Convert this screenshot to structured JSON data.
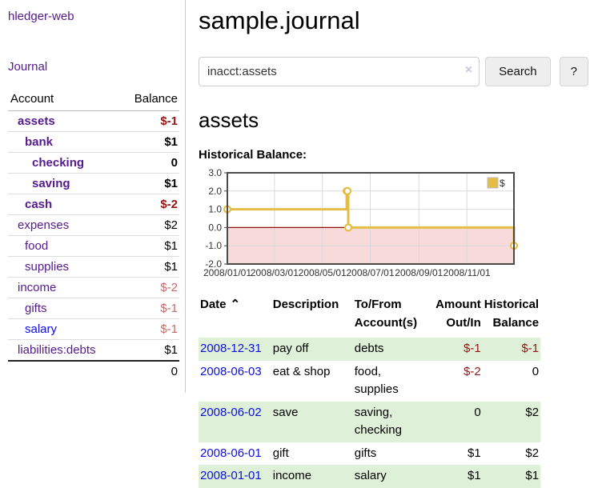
{
  "colors": {
    "link_visited": "#551a8b",
    "link_unvisited": "#0e0ee0",
    "negative_strong": "#941717",
    "negative_soft": "#c46a6a",
    "row_stripe": "#dff0d8"
  },
  "sidebar": {
    "brand": "hledger-web",
    "journal_link": "Journal",
    "accounts_table": {
      "headers": [
        "Account",
        "Balance"
      ],
      "rows": [
        {
          "account": "assets",
          "depth": 0,
          "bold": true,
          "balance": "$-1"
        },
        {
          "account": "bank",
          "depth": 1,
          "bold": true,
          "balance": "$1"
        },
        {
          "account": "checking",
          "depth": 2,
          "bold": true,
          "balance": "0"
        },
        {
          "account": "saving",
          "depth": 2,
          "bold": true,
          "balance": "$1"
        },
        {
          "account": "cash",
          "depth": 1,
          "bold": true,
          "balance": "$-2"
        },
        {
          "account": "expenses",
          "depth": 0,
          "bold": false,
          "balance": "$2"
        },
        {
          "account": "food",
          "depth": 1,
          "bold": false,
          "balance": "$1"
        },
        {
          "account": "supplies",
          "depth": 1,
          "bold": false,
          "balance": "$1"
        },
        {
          "account": "income",
          "depth": 0,
          "bold": false,
          "balance": "$-2"
        },
        {
          "account": "gifts",
          "depth": 1,
          "bold": false,
          "balance": "$-1"
        },
        {
          "account": "salary",
          "depth": 1,
          "bold": false,
          "balance": "$-1",
          "unvisited": true
        },
        {
          "account": "liabilities:debts",
          "depth": 0,
          "bold": false,
          "balance": "$1"
        }
      ],
      "total": "0"
    }
  },
  "main": {
    "title": "sample.journal",
    "search": {
      "value": "inacct:assets",
      "clear_icon": "×",
      "button_label": "Search",
      "help_label": "?"
    },
    "account_heading": "assets",
    "chart_label": "Historical Balance:",
    "register_table": {
      "headers": [
        {
          "label": "Date",
          "sort_indicator": "⌃"
        },
        {
          "label": "Description"
        },
        {
          "label": "To/From Account(s)"
        },
        {
          "label": "Amount Out/In",
          "align": "right"
        },
        {
          "label": "Historical Balance",
          "align": "right"
        }
      ],
      "rows": [
        {
          "date": "2008-12-31",
          "description": "pay off",
          "accounts": "debts",
          "amount": "$-1",
          "balance": "$-1"
        },
        {
          "date": "2008-06-03",
          "description": "eat & shop",
          "accounts": "food, supplies",
          "amount": "$-2",
          "balance": "0"
        },
        {
          "date": "2008-06-02",
          "description": "save",
          "accounts": "saving, checking",
          "amount": "0",
          "balance": "$2"
        },
        {
          "date": "2008-06-01",
          "description": "gift",
          "accounts": "gifts",
          "amount": "$1",
          "balance": "$2"
        },
        {
          "date": "2008-01-01",
          "description": "income",
          "accounts": "salary",
          "amount": "$1",
          "balance": "$1"
        }
      ]
    }
  },
  "chart_data": {
    "type": "line",
    "title": "Historical Balance",
    "step": true,
    "series": [
      {
        "name": "$",
        "points": [
          [
            "2008-01-01",
            1
          ],
          [
            "2008-06-01",
            2
          ],
          [
            "2008-06-02",
            2
          ],
          [
            "2008-06-03",
            0
          ],
          [
            "2008-12-31",
            -1
          ]
        ]
      }
    ],
    "xlim": [
      "2008-01-01",
      "2008-12-31"
    ],
    "ylim": [
      -2,
      3
    ],
    "y_ticks": [
      3.0,
      2.0,
      1.0,
      0.0,
      -1.0,
      -2.0
    ],
    "x_ticks": [
      "2008/01/01",
      "2008/03/01",
      "2008/05/01",
      "2008/07/01",
      "2008/09/01",
      "2008/11/01"
    ],
    "legend": {
      "label": "$",
      "position": "top-right"
    },
    "grid": true,
    "colors": {
      "line": "#e3bd45",
      "marker_fill": "#ffffff",
      "negative_region": "#f9dada",
      "zero_line": "#8f0e0e",
      "grid": "#d9d9d9",
      "border": "#4a4a4a"
    }
  }
}
